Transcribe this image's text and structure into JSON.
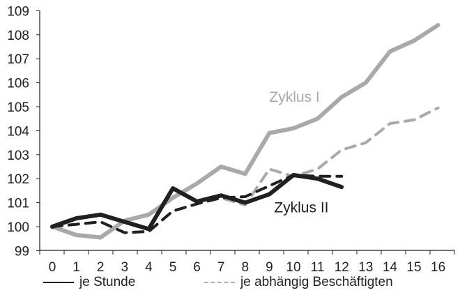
{
  "chart_data": {
    "type": "line",
    "title": "",
    "xlabel": "",
    "ylabel": "",
    "x": [
      0,
      1,
      2,
      3,
      4,
      5,
      6,
      7,
      8,
      9,
      10,
      11,
      12,
      13,
      14,
      15,
      16
    ],
    "xlim": [
      0,
      16
    ],
    "ylim": [
      99,
      109
    ],
    "yticks": [
      99,
      100,
      101,
      102,
      103,
      104,
      105,
      106,
      107,
      108,
      109
    ],
    "xticks": [
      0,
      1,
      2,
      3,
      4,
      5,
      6,
      7,
      8,
      9,
      10,
      11,
      12,
      13,
      14,
      15,
      16
    ],
    "grid": false,
    "series": [
      {
        "name": "Zyklus I – je Stunde",
        "cycle": "Zyklus I",
        "measure": "je Stunde",
        "color": "#a7a9ac",
        "style": "solid",
        "values": [
          100.0,
          99.65,
          99.55,
          100.25,
          100.5,
          101.2,
          101.8,
          102.5,
          102.2,
          103.9,
          104.1,
          104.5,
          105.4,
          106.0,
          107.3,
          107.75,
          108.4
        ]
      },
      {
        "name": "Zyklus I – je abhängig Beschäftigten",
        "cycle": "Zyklus I",
        "measure": "je abhängig Beschäftigten",
        "color": "#a7a9ac",
        "style": "dashed",
        "values": [
          100.0,
          100.1,
          100.2,
          99.75,
          99.8,
          100.65,
          100.95,
          101.2,
          100.9,
          102.4,
          102.1,
          102.4,
          103.2,
          103.5,
          104.3,
          104.45,
          104.95
        ]
      },
      {
        "name": "Zyklus II – je Stunde",
        "cycle": "Zyklus II",
        "measure": "je Stunde",
        "color": "#231f20",
        "style": "solid",
        "values": [
          100.0,
          100.35,
          100.5,
          100.2,
          99.9,
          101.6,
          101.05,
          101.3,
          101.0,
          101.35,
          102.15,
          102.0,
          101.65,
          null,
          null,
          null,
          null
        ]
      },
      {
        "name": "Zyklus II – je abhängig Beschäftigten",
        "cycle": "Zyklus II",
        "measure": "je abhängig Beschäftigten",
        "color": "#231f20",
        "style": "dashed",
        "values": [
          100.0,
          100.1,
          100.2,
          99.75,
          99.8,
          100.65,
          100.95,
          101.2,
          101.25,
          101.7,
          102.15,
          102.1,
          102.1,
          null,
          null,
          null,
          null
        ]
      }
    ],
    "annotations": [
      {
        "text": "Zyklus I",
        "x": 9.0,
        "y": 105.4,
        "color": "#a7a9ac"
      },
      {
        "text": "Zyklus II",
        "x": 9.2,
        "y": 100.8,
        "color": "#231f20"
      }
    ],
    "legend": {
      "position": "bottom",
      "entries": [
        {
          "label": "je Stunde",
          "style": "solid"
        },
        {
          "label": "je abhängig Beschäftigten",
          "style": "dashed"
        }
      ]
    }
  },
  "legend": {
    "solid_label": "je Stunde",
    "dashed_label": "je abhängig Beschäftigten"
  }
}
